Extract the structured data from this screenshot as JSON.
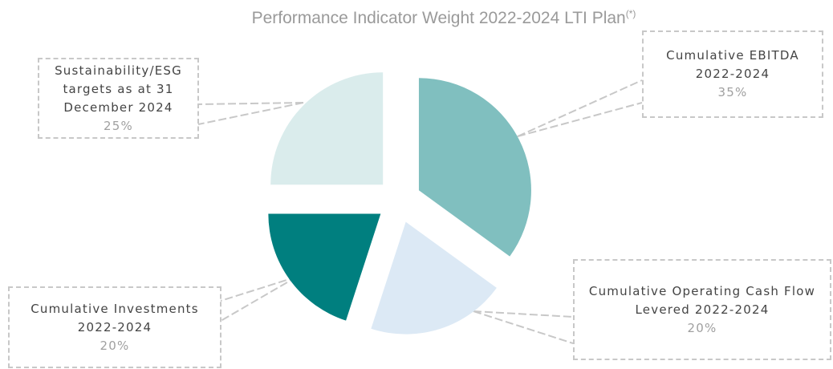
{
  "chart_data": {
    "type": "pie",
    "title": "Performance Indicator Weight 2022-2024 LTI Plan",
    "title_note": "(*)",
    "categories": [
      "Cumulative EBITDA 2022-2024",
      "Cumulative Operating Cash Flow Levered 2022-2024",
      "Cumulative Investments 2022-2024",
      "Sustainability/ESG targets as at 31 December 2024"
    ],
    "values": [
      35,
      20,
      20,
      25
    ],
    "value_labels": [
      "35%",
      "20%",
      "20%",
      "25%"
    ],
    "colors": [
      "#80bfbf",
      "#dce9f5",
      "#007f7f",
      "#daecec"
    ]
  }
}
